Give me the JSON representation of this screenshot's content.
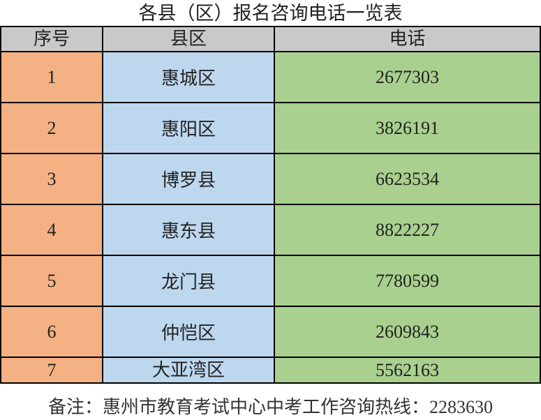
{
  "title": "各县（区）报名咨询电话一览表",
  "columns": [
    "序号",
    "县区",
    "电话"
  ],
  "rows": [
    {
      "no": "1",
      "district": "惠城区",
      "phone": "2677303"
    },
    {
      "no": "2",
      "district": "惠阳区",
      "phone": "3826191"
    },
    {
      "no": "3",
      "district": "博罗县",
      "phone": "6623534"
    },
    {
      "no": "4",
      "district": "惠东县",
      "phone": "8822227"
    },
    {
      "no": "5",
      "district": "龙门县",
      "phone": "7780599"
    },
    {
      "no": "6",
      "district": "仲恺区",
      "phone": "2609843"
    },
    {
      "no": "7",
      "district": "大亚湾区",
      "phone": "5562163"
    }
  ],
  "footer": "备注：惠州市教育考试中心中考工作咨询热线：2283630",
  "colors": {
    "header": "#c9c9c9",
    "no_col": "#f4b183",
    "district_col": "#bdd7ee",
    "phone_col": "#a9d08e"
  }
}
